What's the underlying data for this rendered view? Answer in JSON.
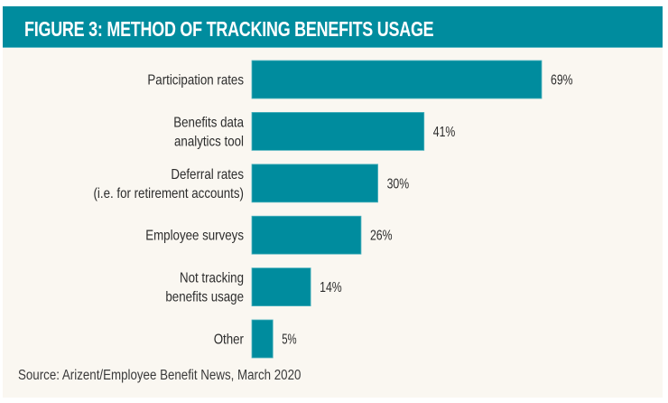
{
  "chart_data": {
    "type": "bar",
    "orientation": "horizontal",
    "title": "FIGURE 3: METHOD OF TRACKING BENEFITS USAGE",
    "categories": [
      [
        "Participation rates"
      ],
      [
        "Benefits data",
        "analytics tool"
      ],
      [
        "Deferral rates",
        "(i.e. for retirement accounts)"
      ],
      [
        "Employee surveys"
      ],
      [
        "Not tracking",
        "benefits usage"
      ],
      [
        "Other"
      ]
    ],
    "values": [
      69,
      41,
      30,
      26,
      14,
      5
    ],
    "value_labels": [
      "69%",
      "41%",
      "30%",
      "26%",
      "14%",
      "5%"
    ],
    "unit": "%",
    "xlabel": "",
    "ylabel": "",
    "xlim": [
      0,
      69
    ],
    "grid": false,
    "legend": "none",
    "bar_color": "#008c9e",
    "source": "Source: Arizent/Employee Benefit News, March 2020"
  },
  "colors": {
    "header_bg": "#008c9e",
    "panel_bg": "#faf7f1",
    "bar": "#008c9e",
    "text": "#2c2c2c"
  }
}
